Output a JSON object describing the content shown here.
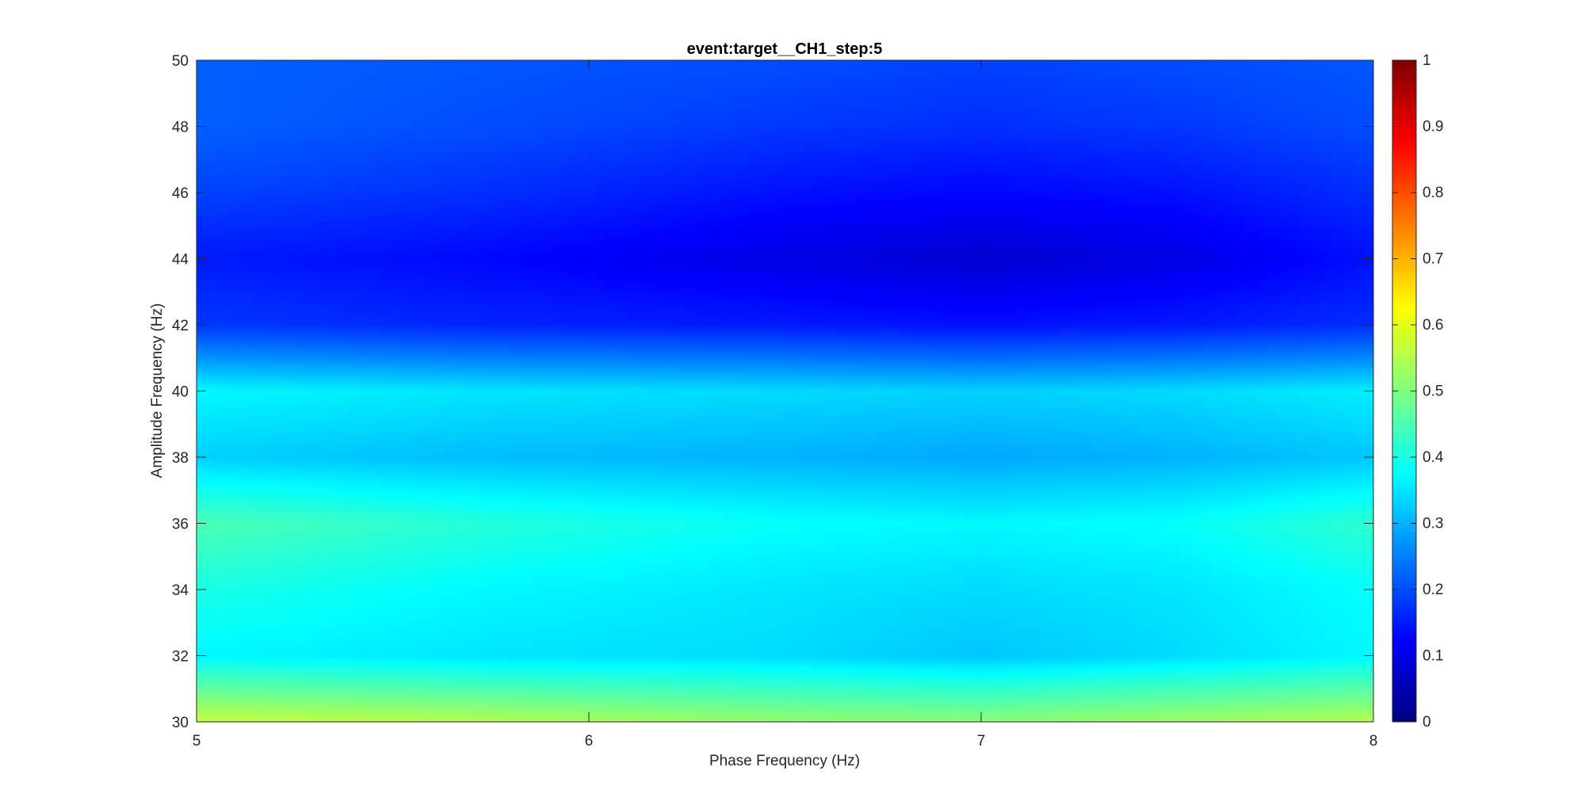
{
  "chart_data": {
    "type": "heatmap",
    "title": "event:target__CH1_step:5",
    "xlabel": "Phase Frequency (Hz)",
    "ylabel": "Amplitude Frequency (Hz)",
    "xlim": [
      5,
      8
    ],
    "ylim": [
      30,
      50
    ],
    "x_ticks": [
      5,
      6,
      7,
      8
    ],
    "y_ticks": [
      30,
      32,
      34,
      36,
      38,
      40,
      42,
      44,
      46,
      48,
      50
    ],
    "colorbar": {
      "colormap": "jet",
      "clim": [
        0,
        1
      ],
      "ticks": [
        0,
        0.1,
        0.2,
        0.3,
        0.4,
        0.5,
        0.6,
        0.7,
        0.8,
        0.9,
        1
      ]
    },
    "x": [
      5,
      5.75,
      6.5,
      7,
      7.5,
      8
    ],
    "y": [
      30,
      31,
      32,
      34,
      36,
      38,
      40,
      41,
      42,
      44,
      46,
      48,
      50
    ],
    "z": [
      [
        0.57,
        0.55,
        0.52,
        0.51,
        0.53,
        0.55
      ],
      [
        0.47,
        0.45,
        0.43,
        0.42,
        0.44,
        0.46
      ],
      [
        0.37,
        0.35,
        0.34,
        0.32,
        0.34,
        0.37
      ],
      [
        0.4,
        0.37,
        0.35,
        0.34,
        0.35,
        0.38
      ],
      [
        0.45,
        0.41,
        0.38,
        0.37,
        0.38,
        0.42
      ],
      [
        0.33,
        0.31,
        0.3,
        0.29,
        0.3,
        0.32
      ],
      [
        0.37,
        0.35,
        0.34,
        0.33,
        0.34,
        0.36
      ],
      [
        0.27,
        0.25,
        0.24,
        0.23,
        0.24,
        0.26
      ],
      [
        0.18,
        0.16,
        0.15,
        0.14,
        0.15,
        0.17
      ],
      [
        0.15,
        0.13,
        0.1,
        0.08,
        0.1,
        0.14
      ],
      [
        0.19,
        0.17,
        0.14,
        0.13,
        0.14,
        0.17
      ],
      [
        0.22,
        0.2,
        0.18,
        0.17,
        0.18,
        0.2
      ],
      [
        0.22,
        0.21,
        0.2,
        0.19,
        0.2,
        0.21
      ]
    ]
  }
}
